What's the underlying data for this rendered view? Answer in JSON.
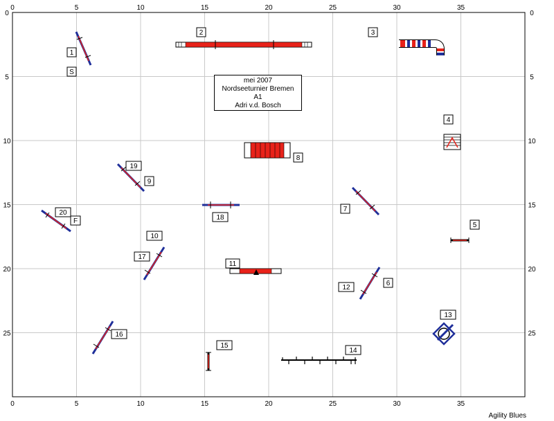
{
  "field": {
    "width_m": 40,
    "height_m": 30,
    "x_ticks": [
      "0",
      "5",
      "10",
      "15",
      "20",
      "25",
      "30",
      "35"
    ],
    "y_ticks": [
      "0",
      "5",
      "10",
      "15",
      "20",
      "25"
    ]
  },
  "info": {
    "date": "mei 2007",
    "event": "Nordseeturnier Bremen",
    "class": "A1",
    "judge": "Adri v.d. Bosch"
  },
  "footer": "Agility Blues",
  "colors": {
    "grid": "#c8c8c8",
    "bar_blue": "#1f2f9a",
    "tunnel_red": "#e8221a",
    "plank_red": "#e8221a"
  },
  "labels": {
    "n1": "1",
    "s": "S",
    "n2": "2",
    "n3": "3",
    "n4": "4",
    "n5": "5",
    "n6": "6",
    "n7": "7",
    "n8": "8",
    "n9": "9",
    "n10": "10",
    "n11": "11",
    "n12": "12",
    "n13": "13",
    "n14": "14",
    "n15": "15",
    "n16": "16",
    "n17": "17",
    "n18": "18",
    "n19": "19",
    "n20": "20",
    "f": "F"
  }
}
